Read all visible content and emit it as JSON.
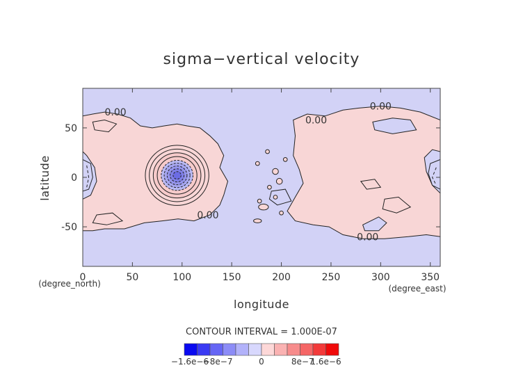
{
  "chart_data": {
    "type": "heatmap",
    "title": "sigma−vertical velocity",
    "xlabel": "longitude",
    "ylabel": "latitude",
    "x_units": "(degree_east)",
    "y_units": "(degree_north)",
    "xlim": [
      0,
      360
    ],
    "ylim": [
      -90,
      90
    ],
    "x_ticks": [
      "0",
      "50",
      "100",
      "150",
      "200",
      "250",
      "300",
      "350"
    ],
    "y_ticks": [
      "-50",
      "0",
      "50"
    ],
    "contour_interval_text": "CONTOUR INTERVAL = 1.000E-07",
    "contour_labels": [
      {
        "text": "0.00",
        "lon": 33,
        "lat": 66
      },
      {
        "text": "0.00",
        "lon": 235,
        "lat": 58
      },
      {
        "text": "0.00",
        "lon": 300,
        "lat": 72
      },
      {
        "text": "0.00",
        "lon": 126,
        "lat": -38
      },
      {
        "text": "0.00",
        "lon": 287,
        "lat": -60
      }
    ],
    "colorbar": {
      "colors": [
        "#0a0af0",
        "#3a3af3",
        "#6666f5",
        "#8c8cf7",
        "#b2b2fa",
        "#d8d8fd",
        "#fdd8d8",
        "#fab2b2",
        "#f78c8c",
        "#f56666",
        "#f33a3a",
        "#f00a0a"
      ],
      "tick_labels": [
        "−1.6e−6",
        "−8e−7",
        "0",
        "8e−7",
        "1.6e−6"
      ],
      "range": [
        -1.6e-06,
        1.6e-06
      ]
    },
    "colors": {
      "negative_fill": "#d2d2f6",
      "positive_fill": "#f8d6d6",
      "contour": "#222222"
    }
  }
}
